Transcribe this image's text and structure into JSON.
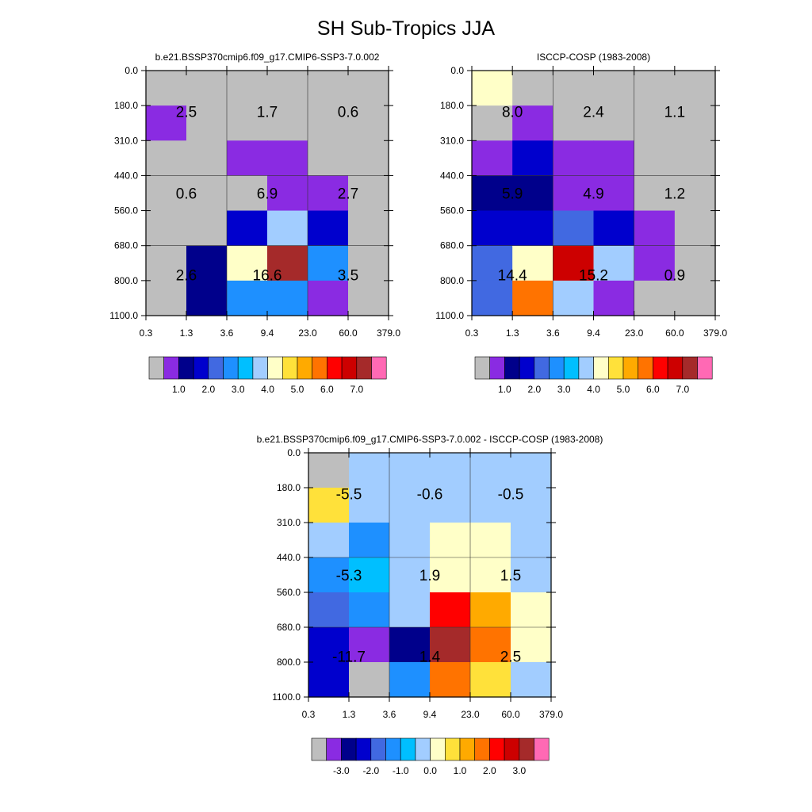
{
  "title": "SH Sub-Tropics JJA",
  "legend_colors": [
    "#bebebe",
    "#8a2be2",
    "#00008b",
    "#0000cd",
    "#4169e1",
    "#1e90ff",
    "#00bfff",
    "#a2cdff",
    "#ffffc8",
    "#ffe13a",
    "#ffaa00",
    "#ff7300",
    "#ff0000",
    "#cd0000",
    "#a52a2a",
    "#ff69b4"
  ],
  "chart_data": [
    {
      "type": "heatmap",
      "title": "b.e21.BSSP370cmip6.f09_g17.CMIP6-SSP3-7.0.002",
      "x_ticks": [
        "0.3",
        "1.3",
        "3.6",
        "9.4",
        "23.0",
        "60.0",
        "379.0"
      ],
      "y_ticks": [
        "0.0",
        "180.0",
        "310.0",
        "440.0",
        "560.0",
        "680.0",
        "800.0",
        "1100.0"
      ],
      "cells": [
        [
          0,
          0,
          0,
          0,
          0,
          0
        ],
        [
          1,
          0,
          0,
          0,
          0,
          0
        ],
        [
          0,
          0,
          1,
          1,
          0,
          0
        ],
        [
          0,
          0,
          0,
          1,
          1,
          0
        ],
        [
          0,
          0,
          3,
          7,
          3,
          0
        ],
        [
          0,
          2,
          8,
          14,
          5,
          0
        ],
        [
          0,
          2,
          5,
          5,
          1,
          0
        ]
      ],
      "group_labels": [
        {
          "col": 0.5,
          "row": 0.5,
          "text": "2.5"
        },
        {
          "col": 0.5,
          "row": 1.5,
          "text": "1.7"
        },
        {
          "col": 0.5,
          "row": 2.5,
          "text": "0.6"
        },
        {
          "col": 1.5,
          "row": 0.5,
          "text": "0.6"
        },
        {
          "col": 1.5,
          "row": 1.5,
          "text": "6.9"
        },
        {
          "col": 1.5,
          "row": 2.5,
          "text": "2.7"
        },
        {
          "col": 2.5,
          "row": 0.5,
          "text": "2.6"
        },
        {
          "col": 2.5,
          "row": 1.5,
          "text": "16.6"
        },
        {
          "col": 2.5,
          "row": 2.5,
          "text": "3.5"
        }
      ],
      "colorbar_labels": [
        "1.0",
        "2.0",
        "3.0",
        "4.0",
        "5.0",
        "6.0",
        "7.0"
      ]
    },
    {
      "type": "heatmap",
      "title": "ISCCP-COSP (1983-2008)",
      "x_ticks": [
        "0.3",
        "1.3",
        "3.6",
        "9.4",
        "23.0",
        "60.0",
        "379.0"
      ],
      "y_ticks": [
        "0.0",
        "180.0",
        "310.0",
        "440.0",
        "560.0",
        "680.0",
        "800.0",
        "1100.0"
      ],
      "cells": [
        [
          8,
          0,
          0,
          0,
          0,
          0
        ],
        [
          0,
          1,
          0,
          0,
          0,
          0
        ],
        [
          1,
          3,
          1,
          1,
          0,
          0
        ],
        [
          2,
          2,
          1,
          1,
          0,
          0
        ],
        [
          3,
          3,
          4,
          3,
          1,
          0
        ],
        [
          4,
          8,
          13,
          7,
          1,
          0
        ],
        [
          4,
          11,
          7,
          1,
          0,
          0
        ]
      ],
      "group_labels": [
        {
          "col": 0.5,
          "row": 0.5,
          "text": "8.0"
        },
        {
          "col": 0.5,
          "row": 1.5,
          "text": "2.4"
        },
        {
          "col": 0.5,
          "row": 2.5,
          "text": "1.1"
        },
        {
          "col": 1.5,
          "row": 0.5,
          "text": "5.9"
        },
        {
          "col": 1.5,
          "row": 1.5,
          "text": "4.9"
        },
        {
          "col": 1.5,
          "row": 2.5,
          "text": "1.2"
        },
        {
          "col": 2.5,
          "row": 0.5,
          "text": "14.4"
        },
        {
          "col": 2.5,
          "row": 1.5,
          "text": "15.2"
        },
        {
          "col": 2.5,
          "row": 2.5,
          "text": "0.9"
        }
      ],
      "colorbar_labels": [
        "1.0",
        "2.0",
        "3.0",
        "4.0",
        "5.0",
        "6.0",
        "7.0"
      ]
    },
    {
      "type": "heatmap",
      "title": "b.e21.BSSP370cmip6.f09_g17.CMIP6-SSP3-7.0.002 - ISCCP-COSP (1983-2008)",
      "x_ticks": [
        "0.3",
        "1.3",
        "3.6",
        "9.4",
        "23.0",
        "60.0",
        "379.0"
      ],
      "y_ticks": [
        "0.0",
        "180.0",
        "310.0",
        "440.0",
        "560.0",
        "680.0",
        "800.0",
        "1100.0"
      ],
      "cells": [
        [
          0,
          7,
          7,
          7,
          7,
          7
        ],
        [
          9,
          7,
          7,
          7,
          7,
          7
        ],
        [
          7,
          5,
          7,
          8,
          8,
          7
        ],
        [
          5,
          6,
          7,
          8,
          8,
          7
        ],
        [
          4,
          5,
          7,
          12,
          10,
          8
        ],
        [
          3,
          1,
          2,
          14,
          11,
          8
        ],
        [
          3,
          0,
          5,
          11,
          9,
          7
        ]
      ],
      "group_labels": [
        {
          "col": 0.5,
          "row": 0.5,
          "text": "-5.5"
        },
        {
          "col": 0.5,
          "row": 1.5,
          "text": "-0.6"
        },
        {
          "col": 0.5,
          "row": 2.5,
          "text": "-0.5"
        },
        {
          "col": 1.5,
          "row": 0.5,
          "text": "-5.3"
        },
        {
          "col": 1.5,
          "row": 1.5,
          "text": "1.9"
        },
        {
          "col": 1.5,
          "row": 2.5,
          "text": "1.5"
        },
        {
          "col": 2.5,
          "row": 0.5,
          "text": "-11.7"
        },
        {
          "col": 2.5,
          "row": 1.5,
          "text": "1.4"
        },
        {
          "col": 2.5,
          "row": 2.5,
          "text": "2.5"
        }
      ],
      "colorbar_labels": [
        "-3.0",
        "-2.0",
        "-1.0",
        "0.0",
        "1.0",
        "2.0",
        "3.0"
      ]
    }
  ]
}
